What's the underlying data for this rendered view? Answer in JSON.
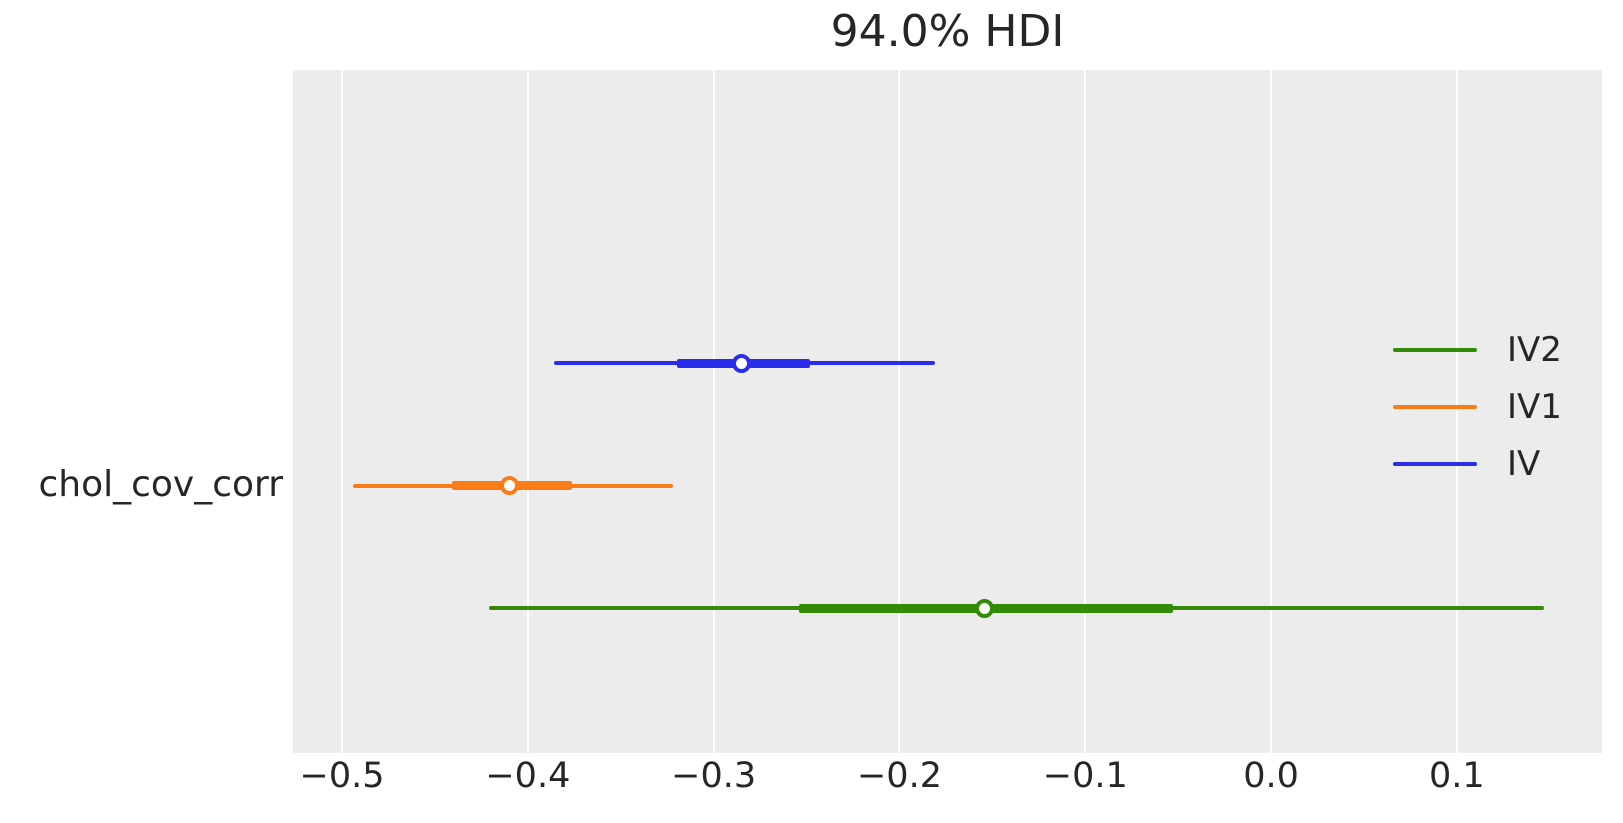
{
  "chart_data": {
    "type": "forest_plot",
    "title": "94.0% HDI",
    "hdi_prob_label": "94.0%",
    "row_label": "chol_cov_corr",
    "xlim": [
      -0.5264,
      0.1781
    ],
    "x_ticks": [
      -0.5,
      -0.4,
      -0.3,
      -0.2,
      -0.1,
      0.0,
      0.1
    ],
    "x_tick_labels": [
      "−0.5",
      "−0.4",
      "−0.3",
      "−0.2",
      "−0.1",
      "0.0",
      "0.1"
    ],
    "grid": "vertical-only",
    "plot_background_color": "#ececec",
    "grid_color": "#ffffff",
    "text_color": "#262626",
    "point_marker": "circle-white-filled",
    "series": [
      {
        "name": "IV",
        "color": "#2a2eec",
        "y_frac": 0.429,
        "hdi_94": [
          -0.386,
          -0.181
        ],
        "quartile": [
          -0.32,
          -0.248
        ],
        "point_estimate": -0.285
      },
      {
        "name": "IV1",
        "color": "#fa7c17",
        "y_frac": 0.609,
        "hdi_94": [
          -0.494,
          -0.322
        ],
        "quartile": [
          -0.441,
          -0.376
        ],
        "point_estimate": -0.41
      },
      {
        "name": "IV2",
        "color": "#328c06",
        "y_frac": 0.788,
        "hdi_94": [
          -0.421,
          0.147
        ],
        "quartile": [
          -0.254,
          -0.053
        ],
        "point_estimate": -0.154
      }
    ],
    "legend": {
      "position": "center-right",
      "entries": [
        {
          "label": "IV2",
          "color": "#328c06"
        },
        {
          "label": "IV1",
          "color": "#fa7c17"
        },
        {
          "label": "IV",
          "color": "#2a2eec"
        }
      ]
    }
  }
}
